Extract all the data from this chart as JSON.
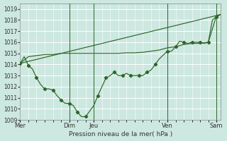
{
  "background_color": "#cce8e0",
  "grid_color": "#ffffff",
  "line_color": "#2d6628",
  "xlabel": "Pression niveau de la mer( hPa )",
  "ylim": [
    1009,
    1019.5
  ],
  "yticks": [
    1009,
    1010,
    1011,
    1012,
    1013,
    1014,
    1015,
    1016,
    1017,
    1018,
    1019
  ],
  "xlim": [
    0,
    24.5
  ],
  "vlines": [
    6,
    9,
    18,
    24
  ],
  "line_zigzag_x": [
    0,
    0.5,
    1,
    1.5,
    2,
    2.5,
    3,
    3.5,
    4,
    4.5,
    5,
    5.5,
    6,
    6.5,
    7,
    7.5,
    8,
    9,
    9.5,
    10,
    10.5,
    11,
    11.5,
    12,
    12.5,
    13,
    13.5,
    14,
    14.5,
    15,
    15.5,
    16,
    16.5,
    17,
    18,
    18.5,
    19,
    19.5,
    20,
    20.5,
    21,
    21.5,
    22,
    22.5,
    23,
    23.5,
    24,
    24.5
  ],
  "line_zigzag_y": [
    1014.1,
    1014.7,
    1013.9,
    1013.6,
    1012.8,
    1012.2,
    1011.8,
    1011.8,
    1011.7,
    1011.2,
    1010.8,
    1010.5,
    1010.5,
    1010.3,
    1009.7,
    1009.3,
    1009.3,
    1010.3,
    1011.2,
    1012.0,
    1012.8,
    1013.0,
    1013.3,
    1013.0,
    1013.0,
    1013.2,
    1013.0,
    1013.0,
    1013.0,
    1013.0,
    1013.3,
    1013.5,
    1014.0,
    1014.5,
    1015.2,
    1015.2,
    1015.6,
    1016.1,
    1016.0,
    1015.9,
    1016.0,
    1016.0,
    1016.0,
    1015.9,
    1016.0,
    1018.0,
    1018.3,
    1018.5
  ],
  "line_smooth_x": [
    0,
    1,
    2,
    3,
    4,
    5,
    6,
    7,
    8,
    9,
    10,
    11,
    12,
    13,
    14,
    15,
    16,
    17,
    18,
    19,
    20,
    21,
    22,
    23,
    24,
    24.5
  ],
  "line_smooth_y": [
    1014.1,
    1014.7,
    1014.8,
    1014.9,
    1014.9,
    1015.0,
    1015.0,
    1015.0,
    1015.0,
    1015.0,
    1015.0,
    1015.0,
    1015.0,
    1015.05,
    1015.05,
    1015.1,
    1015.2,
    1015.3,
    1015.5,
    1015.6,
    1015.8,
    1015.9,
    1015.9,
    1016.0,
    1018.4,
    1018.5
  ],
  "line_trend_x": [
    0,
    24.5
  ],
  "line_trend_y": [
    1014.1,
    1018.5
  ]
}
